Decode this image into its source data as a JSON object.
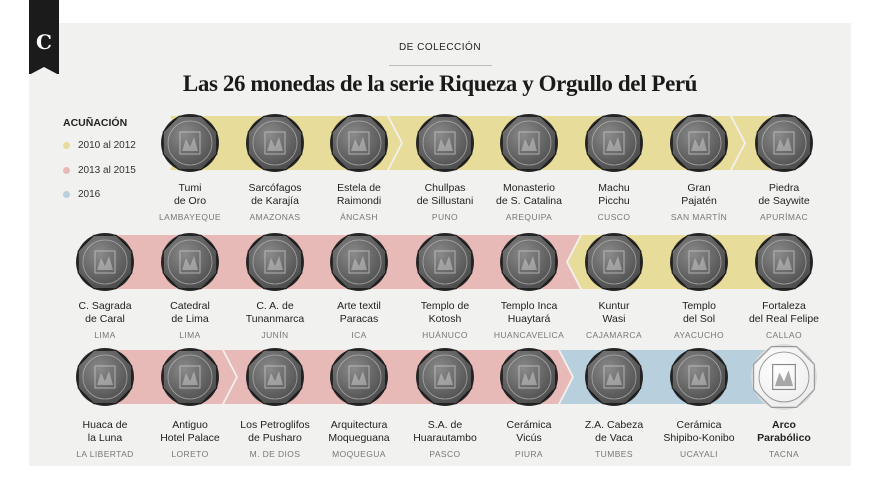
{
  "header": {
    "logo_letter": "C",
    "section": "DE COLECCIÓN",
    "title": "Las 26 monedas de la serie Riqueza y Orgullo del Perú"
  },
  "legend": {
    "title": "ACUÑACIÓN",
    "items": [
      {
        "label": "2010 al 2012",
        "color": "#e8dc9a"
      },
      {
        "label": "2013 al 2015",
        "color": "#e7b9b7"
      },
      {
        "label": "2016",
        "color": "#b8d0dd"
      }
    ]
  },
  "coins": [
    {
      "name": "Tumi\nde Oro",
      "region": "LAMBAYEQUE",
      "era": "2010 al 2012"
    },
    {
      "name": "Sarcófagos\nde Karajía",
      "region": "AMAZONAS",
      "era": "2010 al 2012"
    },
    {
      "name": "Estela de\nRaimondi",
      "region": "ÁNCASH",
      "era": "2010 al 2012"
    },
    {
      "name": "Chullpas\nde Sillustani",
      "region": "PUNO",
      "era": "2010 al 2012"
    },
    {
      "name": "Monasterio\nde S. Catalina",
      "region": "AREQUIPA",
      "era": "2010 al 2012"
    },
    {
      "name": "Machu\nPicchu",
      "region": "CUSCO",
      "era": "2010 al 2012"
    },
    {
      "name": "Gran\nPajatén",
      "region": "SAN MARTÍN",
      "era": "2010 al 2012"
    },
    {
      "name": "Piedra\nde Saywite",
      "region": "APURÍMAC",
      "era": "2010 al 2012"
    },
    {
      "name": "C. Sagrada\nde Caral",
      "region": "LIMA",
      "era": "2013 al 2015"
    },
    {
      "name": "Catedral\nde Lima",
      "region": "LIMA",
      "era": "2013 al 2015"
    },
    {
      "name": "C. A. de\nTunanmarca",
      "region": "JUNÍN",
      "era": "2013 al 2015"
    },
    {
      "name": "Arte textil\nParacas",
      "region": "ICA",
      "era": "2013 al 2015"
    },
    {
      "name": "Templo de\nKotosh",
      "region": "HUÁNUCO",
      "era": "2013 al 2015"
    },
    {
      "name": "Templo Inca\nHuaytará",
      "region": "HUANCAVELICA",
      "era": "2013 al 2015"
    },
    {
      "name": "Kuntur\nWasi",
      "region": "CAJAMARCA",
      "era": "2010 al 2012"
    },
    {
      "name": "Templo\ndel Sol",
      "region": "AYACUCHO",
      "era": "2010 al 2012"
    },
    {
      "name": "Fortaleza\ndel Real Felipe",
      "region": "CALLAO",
      "era": "2010 al 2012"
    },
    {
      "name": "Huaca de\nla Luna",
      "region": "LA LIBERTAD",
      "era": "2013 al 2015"
    },
    {
      "name": "Antiguo\nHotel Palace",
      "region": "LORETO",
      "era": "2013 al 2015"
    },
    {
      "name": "Los Petroglifos\nde Pusharo",
      "region": "M. DE DIOS",
      "era": "2013 al 2015"
    },
    {
      "name": "Arquitectura\nMoqueguana",
      "region": "MOQUEGUA",
      "era": "2013 al 2015"
    },
    {
      "name": "S.A. de\nHuarautambo",
      "region": "PASCO",
      "era": "2013 al 2015"
    },
    {
      "name": "Cerámica\nVicús",
      "region": "PIURA",
      "era": "2013 al 2015"
    },
    {
      "name": "Z.A. Cabeza\nde Vaca",
      "region": "TUMBES",
      "era": "2016"
    },
    {
      "name": "Cerámica\nShipibo-Konibo",
      "region": "UCAYALI",
      "era": "2016"
    },
    {
      "name": "Arco\nParabólico",
      "region": "TACNA",
      "era": "2016",
      "highlight": true
    }
  ]
}
